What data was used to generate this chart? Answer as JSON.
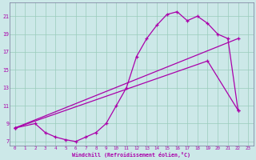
{
  "xlabel": "Windchill (Refroidissement éolien,°C)",
  "bg_color": "#cce8e8",
  "grid_color": "#99ccbb",
  "line_color": "#aa00aa",
  "yticks": [
    7,
    9,
    11,
    13,
    15,
    17,
    19,
    21
  ],
  "xticks": [
    0,
    1,
    2,
    3,
    4,
    5,
    6,
    7,
    8,
    9,
    10,
    11,
    12,
    13,
    14,
    15,
    16,
    17,
    18,
    19,
    20,
    21,
    22,
    23
  ],
  "ylim": [
    6.5,
    22.5
  ],
  "xlim": [
    -0.5,
    23.5
  ],
  "line1_x": [
    0,
    2,
    3,
    4,
    5,
    6,
    7,
    8,
    9,
    10,
    11,
    12,
    13,
    14,
    15,
    16,
    17,
    18,
    19,
    20,
    21,
    22
  ],
  "line1_y": [
    8.5,
    9.0,
    8.0,
    7.5,
    7.2,
    7.0,
    7.5,
    8.0,
    9.0,
    11.0,
    13.0,
    16.5,
    18.5,
    20.0,
    21.2,
    21.5,
    20.5,
    21.0,
    20.2,
    19.0,
    18.5,
    10.5
  ],
  "line2_x": [
    0,
    19,
    22
  ],
  "line2_y": [
    8.5,
    16.0,
    10.5
  ],
  "line3_x": [
    0,
    22
  ],
  "line3_y": [
    8.5,
    18.5
  ]
}
